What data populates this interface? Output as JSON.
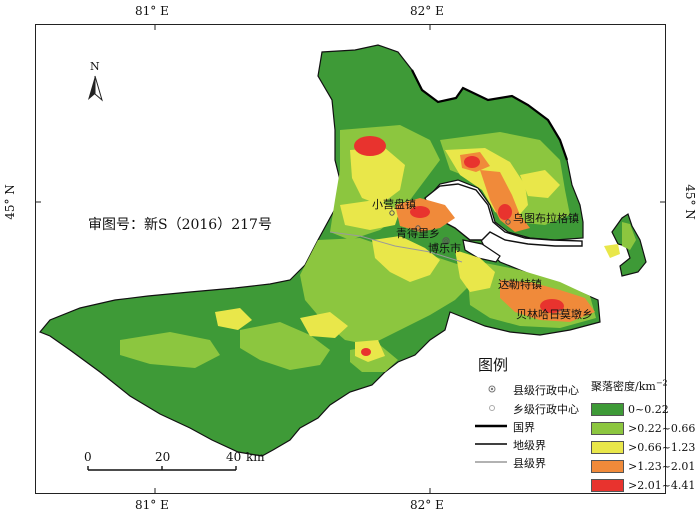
{
  "ticks": {
    "top_lon_1": "81° E",
    "top_lon_2": "82° E",
    "bottom_lon_1": "81° E",
    "bottom_lon_2": "82° E",
    "left_lat": "45° N",
    "right_lat": "45° N"
  },
  "north_label": "N",
  "review_number": "审图号：新S（2016）217号",
  "places": {
    "xiaoyingpan": "小营盘镇",
    "qingdeli": "青得里乡",
    "bole": "博乐市",
    "wutubulage": "乌图布拉格镇",
    "dalete": "达勒特镇",
    "beilinhari": "贝林哈日莫墩乡"
  },
  "legend": {
    "title": "图例",
    "symbols": [
      {
        "label": "县级行政中心",
        "icon": "double-circle-icon"
      },
      {
        "label": "乡级行政中心",
        "icon": "dot-circle-icon"
      },
      {
        "label": "国界",
        "icon": "thick-line"
      },
      {
        "label": "地级界",
        "icon": "medium-line"
      },
      {
        "label": "县级界",
        "icon": "gray-line"
      }
    ],
    "density_title": "聚落密度/km",
    "density_exponent": "−2",
    "classes": [
      {
        "label": "0~0.22",
        "color": "#3e9a37"
      },
      {
        "label": ">0.22~0.66",
        "color": "#8cc63f"
      },
      {
        "label": ">0.66~1.23",
        "color": "#e9e74a"
      },
      {
        "label": ">1.23~2.01",
        "color": "#f08a3a"
      },
      {
        "label": ">2.01~4.41",
        "color": "#e8332e"
      }
    ]
  },
  "scale_bar": {
    "ticks": [
      "0",
      "20",
      "40"
    ],
    "unit": "km"
  }
}
